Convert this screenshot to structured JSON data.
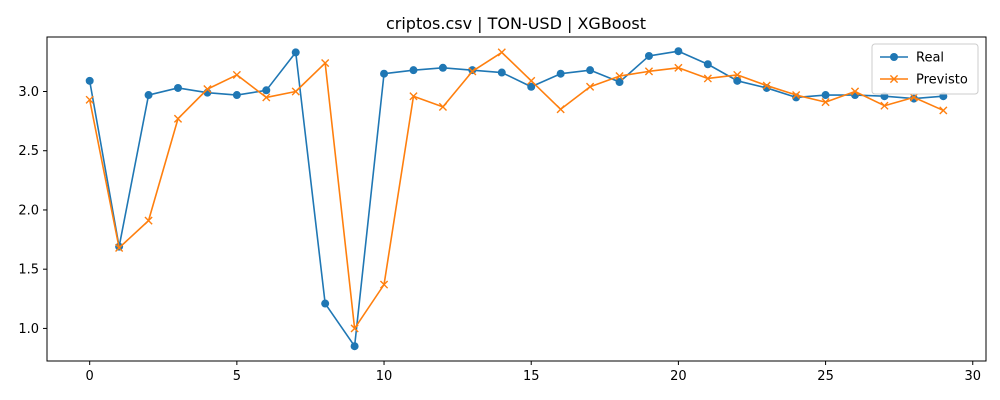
{
  "chart_data": {
    "type": "line",
    "title": "criptos.csv | TON-USD | XGBoost",
    "xlabel": "",
    "ylabel": "",
    "xlim": [
      -1.45,
      30.45
    ],
    "ylim": [
      0.725,
      3.46
    ],
    "xticks": [
      0,
      5,
      10,
      15,
      20,
      25,
      30
    ],
    "xtick_labels": [
      "0",
      "5",
      "10",
      "15",
      "20",
      "25",
      "30"
    ],
    "yticks": [
      1.0,
      1.5,
      2.0,
      2.5,
      3.0
    ],
    "ytick_labels": [
      "1.0",
      "1.5",
      "2.0",
      "2.5",
      "3.0"
    ],
    "grid": false,
    "legend_position": "top-right",
    "x": [
      0,
      1,
      2,
      3,
      4,
      5,
      6,
      7,
      8,
      9,
      10,
      11,
      12,
      13,
      14,
      15,
      16,
      17,
      18,
      19,
      20,
      21,
      22,
      23,
      24,
      25,
      26,
      27,
      28,
      29
    ],
    "series": [
      {
        "name": "Real",
        "color": "#1f77b4",
        "marker": "circle",
        "values": [
          3.09,
          1.69,
          2.97,
          3.03,
          2.99,
          2.97,
          3.01,
          3.33,
          1.21,
          0.85,
          3.15,
          3.18,
          3.2,
          3.18,
          3.16,
          3.04,
          3.15,
          3.18,
          3.08,
          3.3,
          3.34,
          3.23,
          3.09,
          3.03,
          2.95,
          2.97,
          2.97,
          2.96,
          2.94,
          2.96
        ]
      },
      {
        "name": "Previsto",
        "color": "#ff7f0e",
        "marker": "x",
        "values": [
          2.93,
          1.68,
          1.91,
          2.77,
          3.02,
          3.14,
          2.95,
          3.0,
          3.24,
          1.0,
          1.37,
          2.96,
          2.87,
          3.17,
          3.33,
          3.09,
          2.85,
          3.04,
          3.13,
          3.17,
          3.2,
          3.11,
          3.14,
          3.05,
          2.97,
          2.91,
          3.0,
          2.88,
          2.95,
          2.84
        ]
      }
    ]
  }
}
